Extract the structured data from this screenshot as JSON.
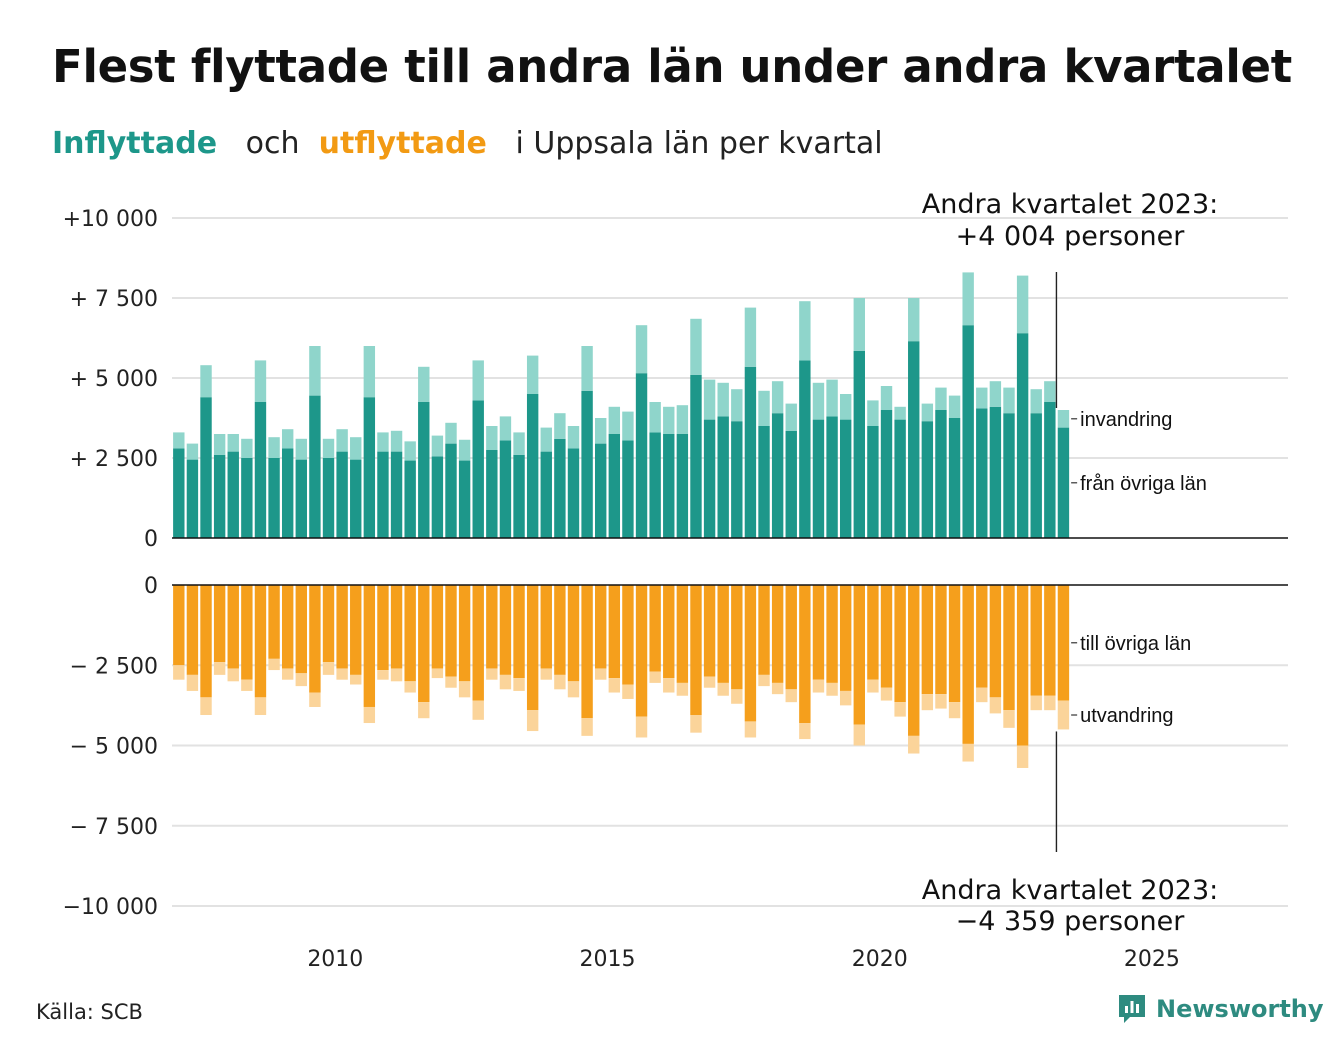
{
  "chart_data": {
    "type": "bar",
    "title": "Flest flyttade till andra län under andra kvartalet",
    "subtitle": {
      "inflow_word": "Inflyttade",
      "and_word": "och",
      "outflow_word": "utflyttade",
      "rest": "i Uppsala  län  per  kvartal"
    },
    "x_ticks": [
      "2010",
      "2015",
      "2020",
      "2025"
    ],
    "x_tick_values": [
      2010,
      2015,
      2020,
      2025
    ],
    "xlim": [
      2007,
      2027.5
    ],
    "top_panel": {
      "y_ticks": [
        10000,
        7500,
        5000,
        2500,
        0
      ],
      "y_tick_labels": [
        "+10 000",
        "+ 7 500",
        "+ 5 000",
        "+ 2 500",
        "0"
      ],
      "ylim": [
        0,
        10000
      ]
    },
    "bottom_panel": {
      "y_ticks": [
        0,
        -2500,
        -5000,
        -7500,
        -10000
      ],
      "y_tick_labels": [
        "0",
        "− 2 500",
        "− 5 000",
        "− 7 500",
        "−10 000"
      ],
      "ylim": [
        -10000,
        0
      ]
    },
    "series": [
      {
        "name": "från övriga län",
        "panel": "top",
        "color": "#1d978a",
        "values": [
          2800,
          2450,
          4400,
          2600,
          2700,
          2500,
          4250,
          2500,
          2800,
          2450,
          4450,
          2500,
          2700,
          2450,
          4400,
          2700,
          2700,
          2420,
          4250,
          2550,
          2950,
          2420,
          4300,
          2750,
          3050,
          2600,
          4500,
          2700,
          3100,
          2800,
          4600,
          2950,
          3250,
          3050,
          5150,
          3300,
          3250,
          3250,
          5100,
          3700,
          3800,
          3650,
          5350,
          3500,
          3900,
          3350,
          5550,
          3700,
          3800,
          3700,
          5850,
          3500,
          4000,
          3700,
          6150,
          3650,
          4000,
          3750,
          6650,
          4050,
          4100,
          3900,
          6400,
          3900,
          4250,
          3450
        ]
      },
      {
        "name": "invandring",
        "panel": "top",
        "color": "#8fd5cb",
        "values": [
          500,
          500,
          1000,
          650,
          550,
          600,
          1300,
          650,
          600,
          650,
          1550,
          600,
          700,
          700,
          1600,
          600,
          650,
          600,
          1100,
          650,
          650,
          650,
          1250,
          750,
          750,
          700,
          1200,
          750,
          800,
          700,
          1400,
          800,
          850,
          900,
          1500,
          950,
          850,
          900,
          1750,
          1250,
          1050,
          1000,
          1850,
          1100,
          1000,
          850,
          1850,
          1150,
          1150,
          800,
          1650,
          800,
          750,
          400,
          1350,
          550,
          700,
          700,
          1650,
          650,
          800,
          800,
          1800,
          750,
          650,
          550
        ]
      },
      {
        "name": "till övriga län",
        "panel": "bottom",
        "color": "#f59f1c",
        "values": [
          2500,
          2800,
          3500,
          2400,
          2600,
          2950,
          3500,
          2300,
          2600,
          2750,
          3350,
          2400,
          2600,
          2800,
          3800,
          2650,
          2600,
          3000,
          3650,
          2600,
          2850,
          3000,
          3600,
          2600,
          2800,
          2900,
          3900,
          2600,
          2800,
          3000,
          4150,
          2600,
          2900,
          3100,
          4100,
          2700,
          2900,
          3050,
          4050,
          2850,
          3050,
          3250,
          4250,
          2800,
          3050,
          3250,
          4300,
          2950,
          3050,
          3300,
          4350,
          2950,
          3200,
          3650,
          4700,
          3400,
          3400,
          3650,
          4950,
          3200,
          3500,
          3900,
          5000,
          3450,
          3450,
          3600
        ]
      },
      {
        "name": "utvandring",
        "panel": "bottom",
        "color": "#fbd49a",
        "values": [
          450,
          500,
          550,
          400,
          400,
          350,
          550,
          350,
          350,
          400,
          450,
          400,
          350,
          300,
          500,
          300,
          400,
          350,
          500,
          300,
          350,
          500,
          600,
          350,
          450,
          400,
          650,
          350,
          450,
          500,
          550,
          350,
          450,
          450,
          650,
          350,
          450,
          400,
          550,
          350,
          400,
          450,
          500,
          350,
          350,
          400,
          500,
          400,
          400,
          450,
          650,
          400,
          400,
          450,
          550,
          500,
          450,
          500,
          550,
          450,
          500,
          550,
          700,
          450,
          450,
          900
        ]
      }
    ],
    "annotations": {
      "top_note": [
        "Andra kvartalet 2023:",
        "+4 004 personer"
      ],
      "bottom_note": [
        "Andra kvartalet 2023:",
        "−4 359 personer"
      ]
    }
  },
  "footer": {
    "source": "Källa: SCB",
    "brand": "Newsworthy",
    "brand_icon": "bar-chart-icon"
  },
  "colors": {
    "inflow_dark": "#1d978a",
    "inflow_light": "#8fd5cb",
    "outflow_dark": "#f59f1c",
    "outflow_light": "#fbd49a",
    "grid": "#e2e2e2",
    "baseline": "#111111"
  }
}
